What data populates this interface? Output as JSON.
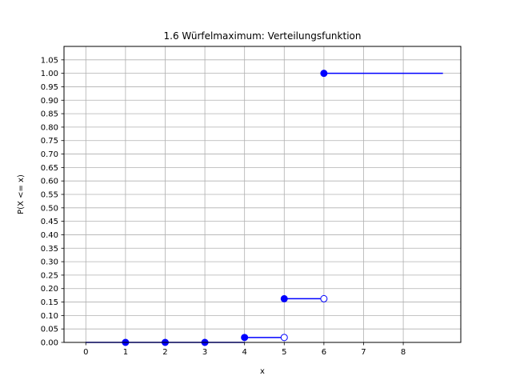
{
  "chart_data": {
    "type": "line",
    "title": "1.6 Würfelmaximum: Verteilungsfunktion",
    "xlabel": "x",
    "ylabel": "P(X <= x)",
    "xlim": [
      -0.55,
      9.45
    ],
    "ylim": [
      0,
      1.1
    ],
    "grid": true,
    "xticks": [
      0,
      1,
      2,
      3,
      4,
      5,
      6,
      7,
      8
    ],
    "yticks": [
      "0.00",
      "0.05",
      "0.10",
      "0.15",
      "0.20",
      "0.25",
      "0.30",
      "0.35",
      "0.40",
      "0.45",
      "0.50",
      "0.55",
      "0.60",
      "0.65",
      "0.70",
      "0.75",
      "0.80",
      "0.85",
      "0.90",
      "0.95",
      "1.00",
      "1.05"
    ],
    "color": "#0000ff",
    "segments": [
      {
        "x0": 0,
        "x1": 1,
        "y": 0.0
      },
      {
        "x0": 1,
        "x1": 2,
        "y": 0.0
      },
      {
        "x0": 2,
        "x1": 3,
        "y": 0.0
      },
      {
        "x0": 3,
        "x1": 4,
        "y": 0.0
      },
      {
        "x0": 4,
        "x1": 5,
        "y": 0.0183
      },
      {
        "x0": 5,
        "x1": 6,
        "y": 0.1623
      },
      {
        "x0": 6,
        "x1": 9,
        "y": 1.0
      }
    ],
    "closed_points": [
      {
        "x": 1,
        "y": 0.0
      },
      {
        "x": 2,
        "y": 0.0
      },
      {
        "x": 3,
        "y": 0.0
      },
      {
        "x": 4,
        "y": 0.0183
      },
      {
        "x": 5,
        "y": 0.1623
      },
      {
        "x": 6,
        "y": 1.0
      }
    ],
    "open_points": [
      {
        "x": 5,
        "y": 0.0183
      },
      {
        "x": 6,
        "y": 0.1623
      }
    ]
  }
}
